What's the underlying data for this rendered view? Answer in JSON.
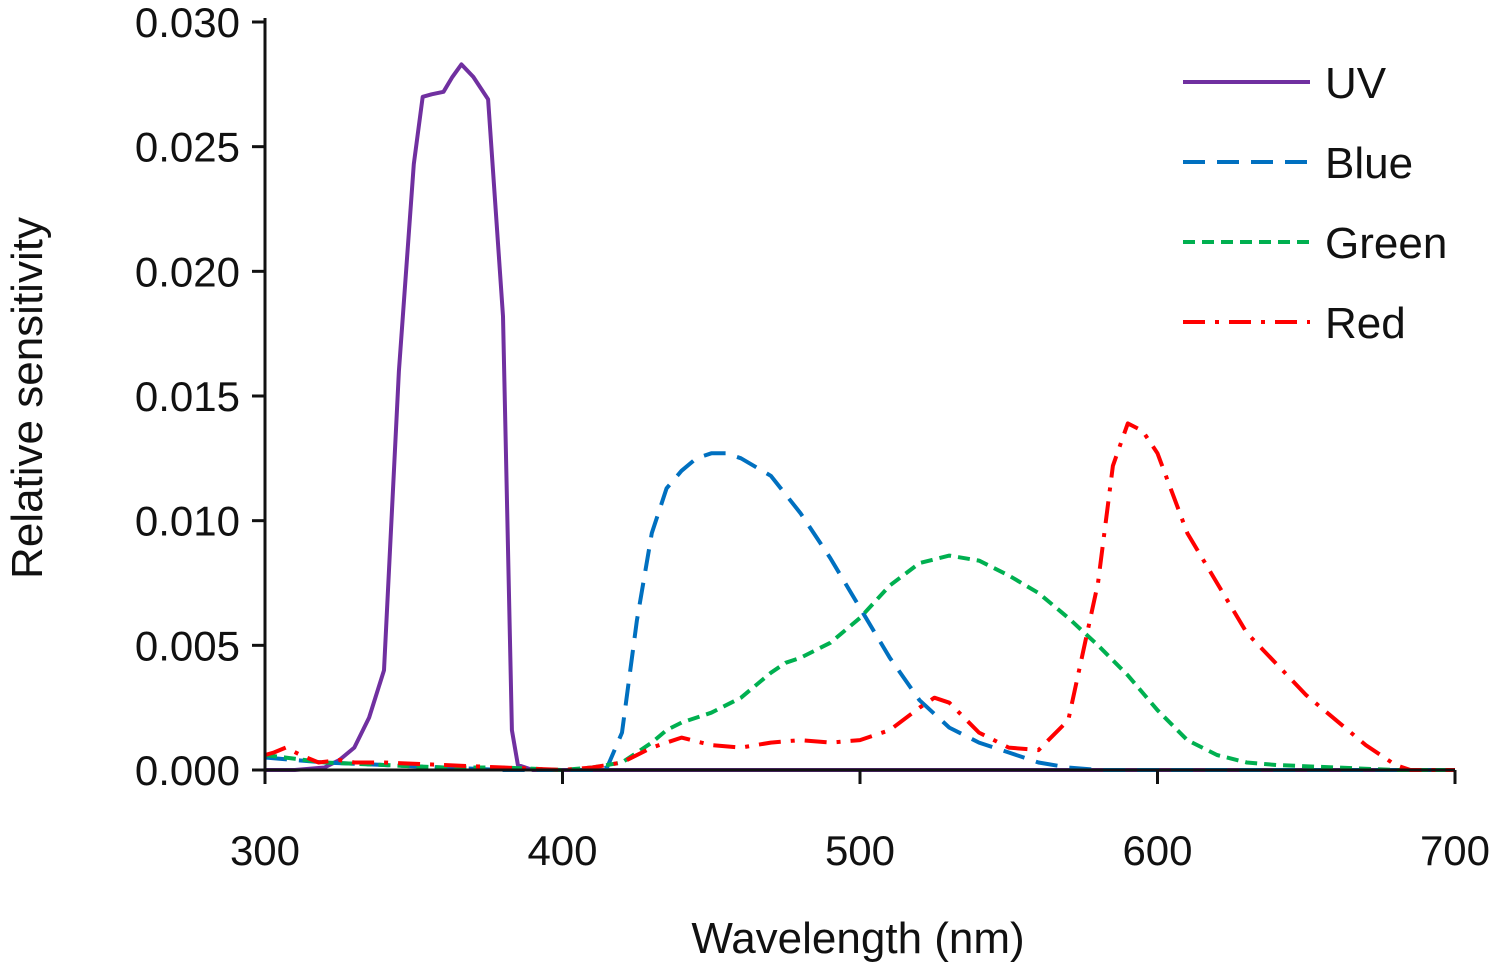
{
  "chart_data": {
    "type": "line",
    "title": "",
    "xlabel": "Wavelength (nm)",
    "ylabel": "Relative sensitivity",
    "xlim": [
      300,
      700
    ],
    "ylim": [
      0,
      0.03
    ],
    "xticks": [
      300,
      400,
      500,
      600,
      700
    ],
    "xtick_labels": [
      "300",
      "400",
      "500",
      "600",
      "700"
    ],
    "yticks": [
      0,
      0.005,
      0.01,
      0.015,
      0.02,
      0.025,
      0.03
    ],
    "ytick_labels": [
      "0.000",
      "0.005",
      "0.010",
      "0.015",
      "0.020",
      "0.025",
      "0.030"
    ],
    "grid": false,
    "legend_position": "top-right",
    "series": [
      {
        "name": "UV",
        "color": "#7030a0",
        "style": "solid",
        "x": [
          300,
          310,
          320,
          325,
          330,
          335,
          340,
          345,
          350,
          353,
          356,
          360,
          363,
          366,
          370,
          375,
          380,
          383,
          385,
          390,
          400,
          500,
          600,
          700
        ],
        "y": [
          0.0,
          0.0,
          0.0001,
          0.0004,
          0.0009,
          0.0021,
          0.004,
          0.016,
          0.0243,
          0.027,
          0.0271,
          0.0272,
          0.0278,
          0.0283,
          0.0278,
          0.0269,
          0.0182,
          0.0016,
          0.0002,
          0.0,
          0.0,
          0.0,
          0.0,
          0.0
        ]
      },
      {
        "name": "Blue",
        "color": "#0070c0",
        "style": "dashed",
        "x": [
          300,
          320,
          340,
          360,
          380,
          400,
          410,
          415,
          420,
          425,
          430,
          435,
          440,
          445,
          450,
          455,
          460,
          470,
          480,
          490,
          500,
          510,
          520,
          530,
          540,
          550,
          560,
          570,
          580,
          600,
          650,
          700
        ],
        "y": [
          0.0005,
          0.0003,
          0.0002,
          0.0001,
          0.0,
          0.0,
          0.0,
          0.0001,
          0.0015,
          0.006,
          0.0095,
          0.0113,
          0.012,
          0.0125,
          0.0127,
          0.0127,
          0.0125,
          0.0118,
          0.0103,
          0.0085,
          0.0065,
          0.0045,
          0.0028,
          0.0017,
          0.0011,
          0.0007,
          0.0003,
          0.0001,
          0.0,
          0.0,
          0.0,
          0.0
        ]
      },
      {
        "name": "Green",
        "color": "#00b050",
        "style": "short-dashed",
        "x": [
          300,
          320,
          340,
          360,
          380,
          400,
          410,
          420,
          430,
          435,
          440,
          450,
          460,
          470,
          475,
          480,
          490,
          500,
          510,
          520,
          530,
          540,
          550,
          560,
          570,
          580,
          590,
          600,
          610,
          620,
          630,
          640,
          660,
          680,
          700
        ],
        "y": [
          0.0006,
          0.0003,
          0.0002,
          0.0001,
          0.0001,
          0.0,
          0.0001,
          0.0003,
          0.0011,
          0.0016,
          0.0019,
          0.0023,
          0.0029,
          0.0039,
          0.0043,
          0.0045,
          0.0051,
          0.0061,
          0.0074,
          0.0083,
          0.0086,
          0.0084,
          0.0078,
          0.0071,
          0.0061,
          0.005,
          0.0038,
          0.0024,
          0.0012,
          0.0006,
          0.0003,
          0.0002,
          0.0001,
          0.0,
          0.0
        ]
      },
      {
        "name": "Red",
        "color": "#ff0000",
        "style": "dash-dot",
        "x": [
          300,
          303,
          307,
          312,
          318,
          325,
          330,
          340,
          360,
          380,
          400,
          410,
          420,
          430,
          440,
          450,
          460,
          470,
          480,
          490,
          500,
          510,
          520,
          525,
          530,
          540,
          550,
          560,
          570,
          580,
          585,
          590,
          595,
          600,
          610,
          620,
          630,
          650,
          670,
          680,
          685,
          700
        ],
        "y": [
          0.0006,
          0.0007,
          0.0009,
          0.0006,
          0.0003,
          0.0004,
          0.0003,
          0.0003,
          0.0002,
          0.0001,
          0.0,
          0.0001,
          0.0003,
          0.0009,
          0.0013,
          0.001,
          0.0009,
          0.0011,
          0.0012,
          0.0011,
          0.0012,
          0.0016,
          0.0025,
          0.0029,
          0.0027,
          0.0015,
          0.0009,
          0.0008,
          0.002,
          0.0075,
          0.0122,
          0.0139,
          0.0136,
          0.0127,
          0.0095,
          0.0075,
          0.0055,
          0.003,
          0.001,
          0.0002,
          0.0,
          0.0
        ]
      }
    ]
  }
}
